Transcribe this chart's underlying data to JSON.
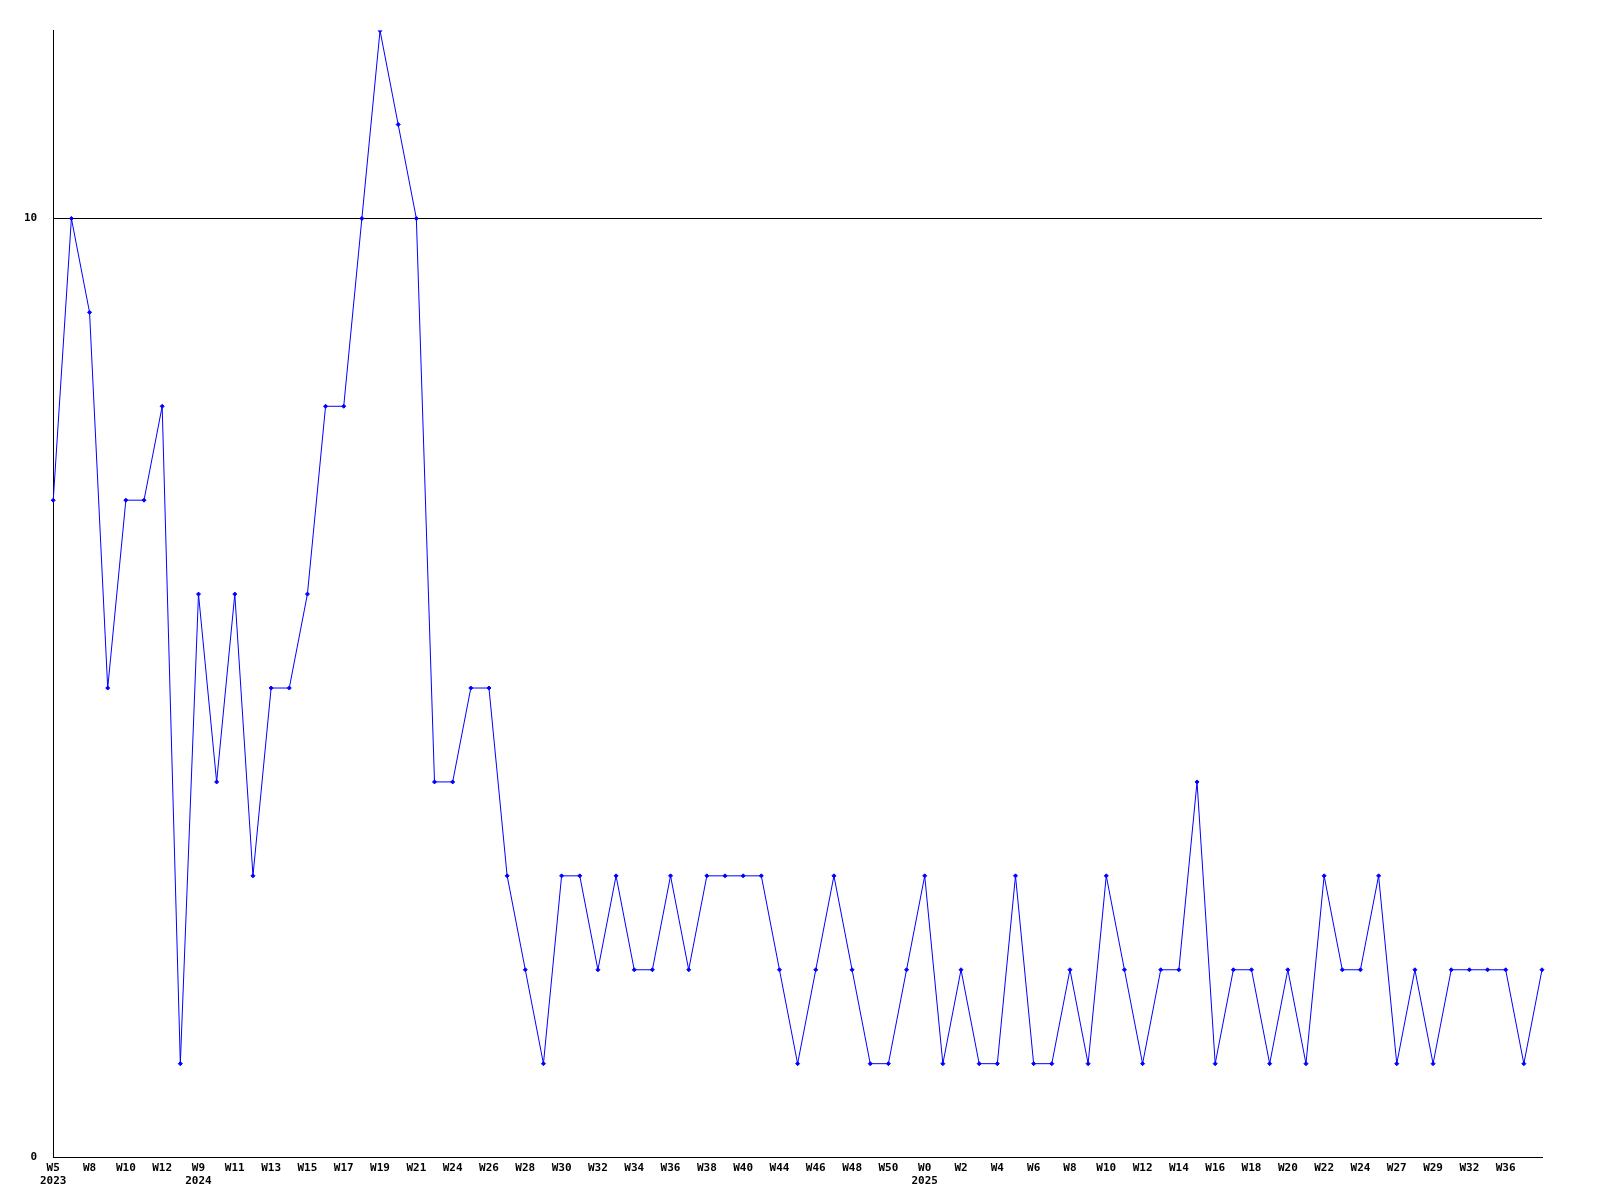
{
  "chart_data": {
    "type": "line",
    "categories": [
      "W5\n2023",
      null,
      "W8",
      null,
      "W10",
      null,
      "W12",
      null,
      "W9\n2024",
      null,
      "W11",
      null,
      "W13",
      null,
      "W15",
      null,
      "W17",
      null,
      "W19",
      null,
      "W21",
      null,
      "W24",
      null,
      "W26",
      null,
      "W28",
      null,
      "W30",
      null,
      "W32",
      null,
      "W34",
      null,
      "W36",
      null,
      "W38",
      null,
      "W40",
      null,
      "W44",
      null,
      "W46",
      null,
      "W48",
      null,
      "W50",
      null,
      "W0\n2025",
      null,
      "W2",
      null,
      "W4",
      null,
      "W6",
      null,
      "W8",
      null,
      "W10",
      null,
      "W12",
      null,
      "W14",
      null,
      "W16",
      null,
      "W18",
      null,
      "W20",
      null,
      "W22",
      null,
      "W24",
      null,
      "W27",
      null,
      "W29",
      null,
      "W32",
      null,
      "W36",
      null,
      null
    ],
    "series": [
      {
        "color": "#0000ff",
        "values": [
          7,
          10,
          9,
          5,
          7,
          7,
          8,
          1,
          6,
          4,
          6,
          3,
          5,
          5,
          6,
          8,
          8,
          10,
          12,
          11,
          10,
          4,
          4,
          5,
          5,
          3,
          2,
          1,
          3,
          3,
          2,
          3,
          2,
          2,
          3,
          2,
          3,
          3,
          3,
          3,
          2,
          1,
          2,
          3,
          2,
          1,
          1,
          2,
          3,
          1,
          2,
          1,
          1,
          3,
          1,
          1,
          2,
          1,
          3,
          2,
          1,
          2,
          2,
          4,
          1,
          2,
          2,
          1,
          2,
          1,
          3,
          2,
          2,
          3,
          1,
          2,
          1,
          2,
          2,
          2,
          2,
          1,
          2
        ]
      }
    ],
    "ylim": [
      0,
      12
    ],
    "yticks": [
      0,
      10
    ],
    "grid": "y",
    "marker": "diamond",
    "line_style": "solid",
    "legend": false
  }
}
